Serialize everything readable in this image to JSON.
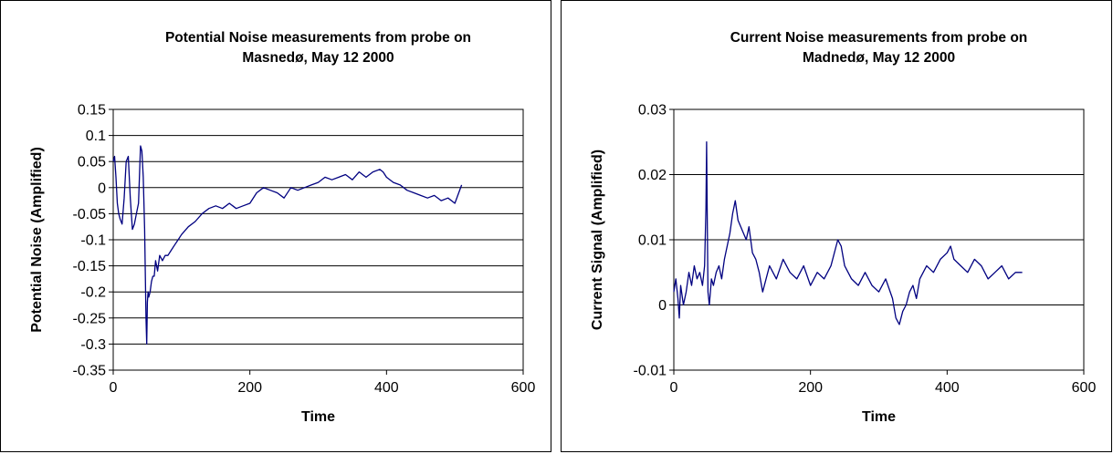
{
  "chart_data": [
    {
      "type": "line",
      "title": [
        "Potential Noise measurements from probe on",
        "Masnedø, May 12 2000"
      ],
      "xlabel": "Time",
      "ylabel": "Potential Noise (Amplified)",
      "xlim": [
        0,
        600
      ],
      "ylim": [
        -0.35,
        0.15
      ],
      "xticks": [
        0,
        200,
        400,
        600
      ],
      "xtick_labels": [
        "0",
        "200",
        "400",
        "600"
      ],
      "yticks": [
        -0.35,
        -0.3,
        -0.25,
        -0.2,
        -0.15,
        -0.1,
        -0.05,
        0,
        0.05,
        0.1,
        0.15
      ],
      "ytick_labels": [
        "-0.35",
        "-0.3",
        "-0.25",
        "-0.2",
        "-0.15",
        "-0.1",
        "-0.05",
        "0",
        "0.05",
        "0.1",
        "0.15"
      ],
      "grid": "horizontal",
      "legend": "none",
      "line_color": "#000080",
      "series": [
        {
          "x": [
            0,
            2,
            4,
            6,
            8,
            10,
            13,
            16,
            19,
            22,
            25,
            28,
            31,
            34,
            37,
            40,
            42,
            44,
            46,
            48,
            49,
            50,
            51,
            52,
            54,
            56,
            58,
            60,
            62,
            65,
            68,
            72,
            76,
            80,
            85,
            90,
            95,
            100,
            110,
            120,
            130,
            140,
            150,
            160,
            170,
            180,
            190,
            200,
            210,
            220,
            230,
            240,
            250,
            260,
            270,
            280,
            290,
            300,
            310,
            320,
            330,
            340,
            350,
            360,
            370,
            380,
            390,
            395,
            400,
            410,
            420,
            430,
            440,
            450,
            460,
            470,
            480,
            490,
            500,
            510
          ],
          "y": [
            0.05,
            0.06,
            0.02,
            -0.03,
            -0.05,
            -0.06,
            -0.07,
            -0.02,
            0.05,
            0.06,
            -0.02,
            -0.08,
            -0.07,
            -0.05,
            -0.03,
            0.08,
            0.07,
            0.02,
            -0.08,
            -0.25,
            -0.3,
            -0.22,
            -0.2,
            -0.21,
            -0.2,
            -0.18,
            -0.17,
            -0.17,
            -0.14,
            -0.16,
            -0.13,
            -0.14,
            -0.13,
            -0.13,
            -0.12,
            -0.11,
            -0.1,
            -0.09,
            -0.075,
            -0.065,
            -0.05,
            -0.04,
            -0.035,
            -0.04,
            -0.03,
            -0.04,
            -0.035,
            -0.03,
            -0.01,
            0.0,
            -0.005,
            -0.01,
            -0.02,
            0.0,
            -0.005,
            0.0,
            0.005,
            0.01,
            0.02,
            0.015,
            0.02,
            0.025,
            0.015,
            0.03,
            0.02,
            0.03,
            0.035,
            0.03,
            0.02,
            0.01,
            0.005,
            -0.005,
            -0.01,
            -0.015,
            -0.02,
            -0.015,
            -0.025,
            -0.02,
            -0.03,
            0.005
          ]
        }
      ]
    },
    {
      "type": "line",
      "title": [
        "Current Noise measurements from probe on",
        "Madnedø, May 12 2000"
      ],
      "xlabel": "Time",
      "ylabel": "Current Signal (Amplified)",
      "xlim": [
        0,
        600
      ],
      "ylim": [
        -0.01,
        0.03
      ],
      "xticks": [
        0,
        200,
        400,
        600
      ],
      "xtick_labels": [
        "0",
        "200",
        "400",
        "600"
      ],
      "yticks": [
        -0.01,
        0,
        0.01,
        0.02,
        0.03
      ],
      "ytick_labels": [
        "-0.01",
        "0",
        "0.01",
        "0.02",
        "0.03"
      ],
      "grid": "horizontal",
      "legend": "none",
      "line_color": "#000080",
      "series": [
        {
          "x": [
            0,
            3,
            6,
            8,
            10,
            14,
            18,
            22,
            26,
            30,
            34,
            38,
            42,
            45,
            47,
            48,
            49,
            50,
            52,
            55,
            58,
            62,
            66,
            70,
            74,
            78,
            82,
            86,
            90,
            94,
            98,
            102,
            106,
            110,
            115,
            120,
            125,
            130,
            140,
            150,
            160,
            170,
            180,
            190,
            200,
            210,
            220,
            230,
            240,
            245,
            250,
            260,
            270,
            280,
            290,
            300,
            310,
            320,
            325,
            330,
            335,
            340,
            345,
            350,
            355,
            360,
            370,
            380,
            390,
            400,
            405,
            410,
            420,
            430,
            440,
            450,
            460,
            470,
            480,
            490,
            500,
            510
          ],
          "y": [
            0.002,
            0.004,
            0.001,
            -0.002,
            0.003,
            0.0,
            0.002,
            0.005,
            0.003,
            0.006,
            0.004,
            0.005,
            0.003,
            0.006,
            0.015,
            0.025,
            0.012,
            0.002,
            0.0,
            0.004,
            0.003,
            0.005,
            0.006,
            0.004,
            0.007,
            0.009,
            0.011,
            0.014,
            0.016,
            0.013,
            0.012,
            0.011,
            0.01,
            0.012,
            0.008,
            0.007,
            0.005,
            0.002,
            0.006,
            0.004,
            0.007,
            0.005,
            0.004,
            0.006,
            0.003,
            0.005,
            0.004,
            0.006,
            0.01,
            0.009,
            0.006,
            0.004,
            0.003,
            0.005,
            0.003,
            0.002,
            0.004,
            0.001,
            -0.002,
            -0.003,
            -0.001,
            0.0,
            0.002,
            0.003,
            0.001,
            0.004,
            0.006,
            0.005,
            0.007,
            0.008,
            0.009,
            0.007,
            0.006,
            0.005,
            0.007,
            0.006,
            0.004,
            0.005,
            0.006,
            0.004,
            0.005,
            0.005
          ]
        }
      ]
    }
  ]
}
